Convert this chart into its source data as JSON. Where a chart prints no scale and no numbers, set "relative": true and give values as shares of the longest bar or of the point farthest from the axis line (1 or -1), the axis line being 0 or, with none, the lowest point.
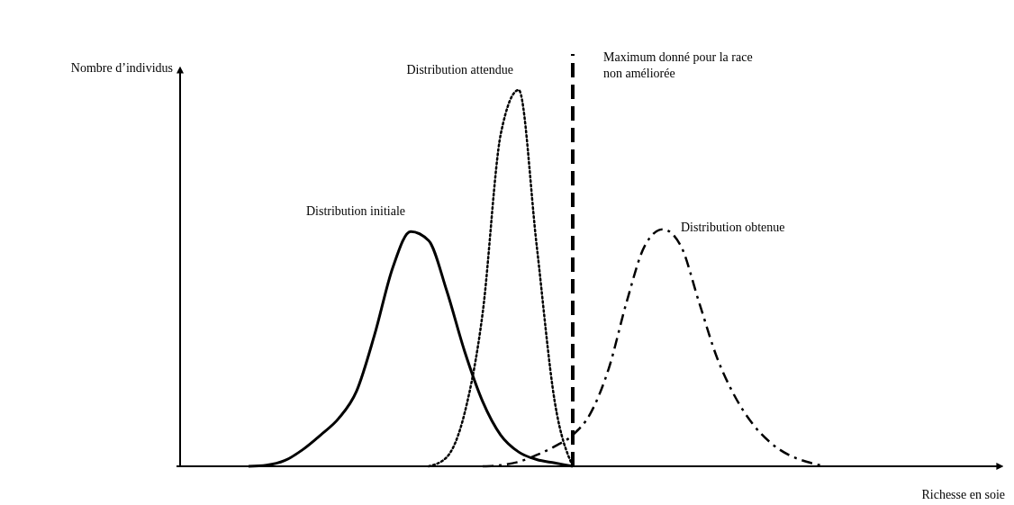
{
  "chart_data": {
    "type": "line",
    "xlabel": "Richesse en soie",
    "ylabel": "Nombre d’individus",
    "relative": true,
    "annotations": [
      "Maximum donné pour la race non améliorée"
    ],
    "categories": [
      null,
      null,
      null,
      null,
      null,
      null,
      null,
      null,
      null,
      null,
      null,
      null,
      null,
      null,
      null,
      null,
      null,
      null,
      null,
      null,
      null,
      null,
      null,
      null,
      null,
      null,
      null,
      null,
      null,
      null,
      null,
      null,
      null,
      null,
      null,
      null,
      null,
      null,
      null,
      null,
      null,
      null,
      null,
      null,
      null,
      null,
      null
    ],
    "series": [
      {
        "name": "Distribution initiale",
        "color": "#000000",
        "line_style": "solid",
        "values": [
          null,
          null,
          null,
          null,
          0,
          0.003,
          0.015,
          0.044,
          0.083,
          0.127,
          0.2,
          0.35,
          0.527,
          0.624,
          0.6,
          0.467,
          0.305,
          0.172,
          0.083,
          0.038,
          0.018,
          0.009,
          0,
          null,
          null,
          null,
          null,
          null,
          null,
          null,
          null,
          null,
          null,
          null,
          null,
          null,
          null,
          null,
          null,
          null,
          null,
          null,
          null,
          null,
          null,
          null,
          null
        ]
      },
      {
        "name": "Distribution attendue",
        "color": "#000000",
        "line_style": "dotted",
        "values": [
          null,
          null,
          null,
          null,
          null,
          null,
          null,
          null,
          null,
          null,
          null,
          null,
          null,
          null,
          0,
          0.024,
          0.142,
          0.408,
          0.882,
          1,
          0.586,
          0.172,
          0,
          null,
          null,
          null,
          null,
          null,
          null,
          null,
          null,
          null,
          null,
          null,
          null,
          null,
          null,
          null,
          null,
          null,
          null,
          null,
          null,
          null,
          null,
          null,
          null
        ]
      },
      {
        "name": "Distribution obtenue",
        "color": "#000000",
        "line_style": "dashed",
        "values": [
          null,
          null,
          null,
          null,
          null,
          null,
          null,
          null,
          null,
          null,
          null,
          null,
          null,
          null,
          null,
          null,
          null,
          0,
          0.003,
          0.012,
          0.03,
          0.053,
          0.083,
          0.142,
          0.26,
          0.438,
          0.586,
          0.63,
          0.586,
          0.438,
          0.29,
          0.186,
          0.112,
          0.062,
          0.03,
          0.012,
          0,
          null,
          null,
          null,
          null,
          null,
          null,
          null,
          null,
          null,
          null
        ]
      }
    ]
  }
}
